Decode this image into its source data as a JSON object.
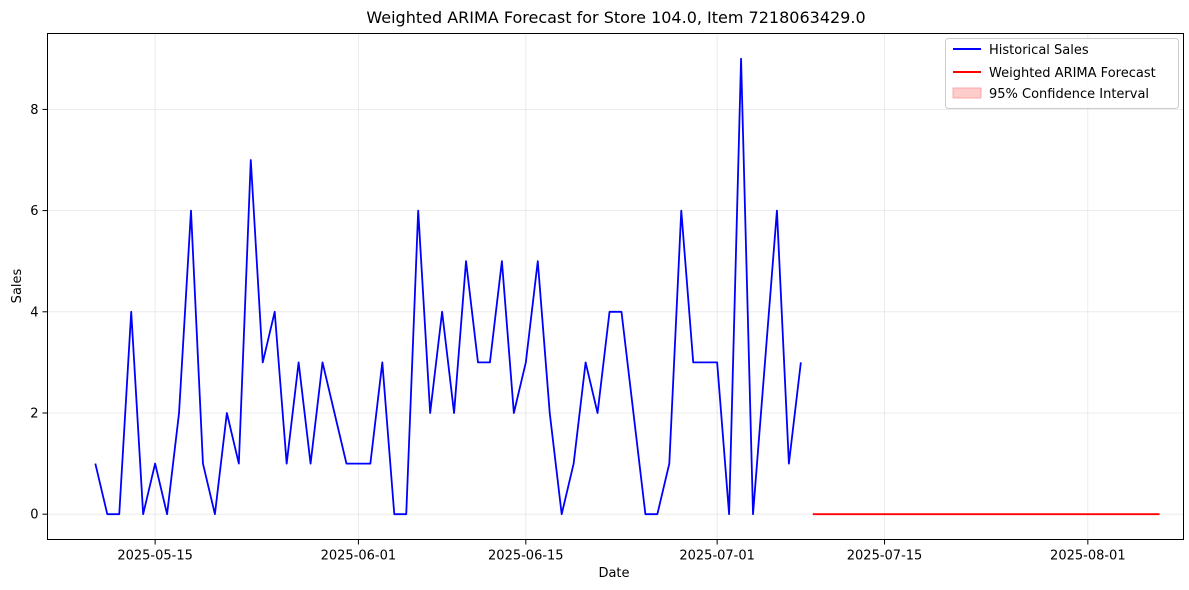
{
  "chart_data": {
    "type": "line",
    "title": "Weighted ARIMA Forecast for Store 104.0, Item 7218063429.0",
    "xlabel": "Date",
    "ylabel": "Sales",
    "xlim": [
      "2025-05-06",
      "2025-08-09"
    ],
    "ylim": [
      -0.5,
      9.5
    ],
    "x_ticks": [
      "2025-05-15",
      "2025-06-01",
      "2025-06-15",
      "2025-07-01",
      "2025-07-15",
      "2025-08-01"
    ],
    "y_ticks": [
      0,
      2,
      4,
      6,
      8
    ],
    "grid": true,
    "legend_position": "top-right",
    "series": [
      {
        "name": "Historical Sales",
        "color": "#0000ff",
        "start_date": "2025-05-10",
        "x": [
          "2025-05-10",
          "2025-05-11",
          "2025-05-12",
          "2025-05-13",
          "2025-05-14",
          "2025-05-15",
          "2025-05-16",
          "2025-05-17",
          "2025-05-18",
          "2025-05-19",
          "2025-05-20",
          "2025-05-21",
          "2025-05-22",
          "2025-05-23",
          "2025-05-24",
          "2025-05-25",
          "2025-05-26",
          "2025-05-27",
          "2025-05-28",
          "2025-05-29",
          "2025-05-30",
          "2025-05-31",
          "2025-06-01",
          "2025-06-02",
          "2025-06-03",
          "2025-06-04",
          "2025-06-05",
          "2025-06-06",
          "2025-06-07",
          "2025-06-08",
          "2025-06-09",
          "2025-06-10",
          "2025-06-11",
          "2025-06-12",
          "2025-06-13",
          "2025-06-14",
          "2025-06-15",
          "2025-06-16",
          "2025-06-17",
          "2025-06-18",
          "2025-06-19",
          "2025-06-20",
          "2025-06-21",
          "2025-06-22",
          "2025-06-23",
          "2025-06-24",
          "2025-06-25",
          "2025-06-26",
          "2025-06-27",
          "2025-06-28",
          "2025-06-29",
          "2025-06-30",
          "2025-07-01",
          "2025-07-02",
          "2025-07-03",
          "2025-07-04",
          "2025-07-05",
          "2025-07-06",
          "2025-07-07",
          "2025-07-08"
        ],
        "values": [
          1,
          0,
          0,
          4,
          0,
          1,
          0,
          2,
          6,
          1,
          0,
          2,
          1,
          7,
          3,
          4,
          1,
          3,
          1,
          3,
          2,
          1,
          1,
          1,
          3,
          0,
          0,
          6,
          2,
          4,
          2,
          5,
          3,
          3,
          5,
          2,
          3,
          5,
          2,
          0,
          1,
          3,
          2,
          4,
          4,
          2,
          0,
          0,
          1,
          6,
          3,
          3,
          3,
          0,
          9,
          0,
          3,
          6,
          1,
          3
        ]
      },
      {
        "name": "Weighted ARIMA Forecast",
        "color": "#ff0000",
        "x": [
          "2025-07-09",
          "2025-08-07"
        ],
        "values": [
          0,
          0
        ]
      }
    ],
    "confidence_interval": {
      "name": "95% Confidence Interval",
      "color": "#ffcccc",
      "border_color": "#ff8080"
    }
  }
}
